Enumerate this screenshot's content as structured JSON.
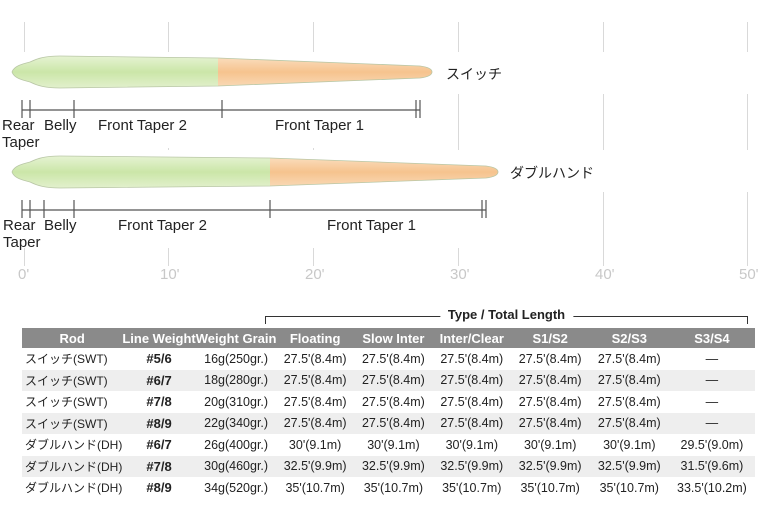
{
  "axis": {
    "ticks": [
      "0'",
      "10'",
      "20'",
      "30'",
      "40'",
      "50'"
    ]
  },
  "lines": [
    {
      "name": "スイッチ",
      "sections": [
        "Rear Taper",
        "Belly",
        "Front Taper 2",
        "Front Taper 1"
      ]
    },
    {
      "name": "ダブルハンド",
      "sections": [
        "Rear Taper",
        "Belly",
        "Front Taper 2",
        "Front Taper 1"
      ]
    }
  ],
  "colors": {
    "front_taper_1": "#f7c896",
    "front_taper_2": "#d5eab5",
    "header_bg": "#8a8a8a"
  },
  "table": {
    "group_label": "Type / Total Length",
    "headers": [
      "Rod",
      "Line Weight",
      "Weight Grain",
      "Floating",
      "Slow Inter",
      "Inter/Clear",
      "S1/S2",
      "S2/S3",
      "S3/S4"
    ],
    "rows": [
      [
        "スイッチ(SWT)",
        "#5/6",
        "16g(250gr.)",
        "27.5'(8.4m)",
        "27.5'(8.4m)",
        "27.5'(8.4m)",
        "27.5'(8.4m)",
        "27.5'(8.4m)",
        "—"
      ],
      [
        "スイッチ(SWT)",
        "#6/7",
        "18g(280gr.)",
        "27.5'(8.4m)",
        "27.5'(8.4m)",
        "27.5'(8.4m)",
        "27.5'(8.4m)",
        "27.5'(8.4m)",
        "—"
      ],
      [
        "スイッチ(SWT)",
        "#7/8",
        "20g(310gr.)",
        "27.5'(8.4m)",
        "27.5'(8.4m)",
        "27.5'(8.4m)",
        "27.5'(8.4m)",
        "27.5'(8.4m)",
        "—"
      ],
      [
        "スイッチ(SWT)",
        "#8/9",
        "22g(340gr.)",
        "27.5'(8.4m)",
        "27.5'(8.4m)",
        "27.5'(8.4m)",
        "27.5'(8.4m)",
        "27.5'(8.4m)",
        "—"
      ],
      [
        "ダブルハンド(DH)",
        "#6/7",
        "26g(400gr.)",
        "30'(9.1m)",
        "30'(9.1m)",
        "30'(9.1m)",
        "30'(9.1m)",
        "30'(9.1m)",
        "29.5'(9.0m)"
      ],
      [
        "ダブルハンド(DH)",
        "#7/8",
        "30g(460gr.)",
        "32.5'(9.9m)",
        "32.5'(9.9m)",
        "32.5'(9.9m)",
        "32.5'(9.9m)",
        "32.5'(9.9m)",
        "31.5'(9.6m)"
      ],
      [
        "ダブルハンド(DH)",
        "#8/9",
        "34g(520gr.)",
        "35'(10.7m)",
        "35'(10.7m)",
        "35'(10.7m)",
        "35'(10.7m)",
        "35'(10.7m)",
        "33.5'(10.2m)"
      ]
    ]
  }
}
